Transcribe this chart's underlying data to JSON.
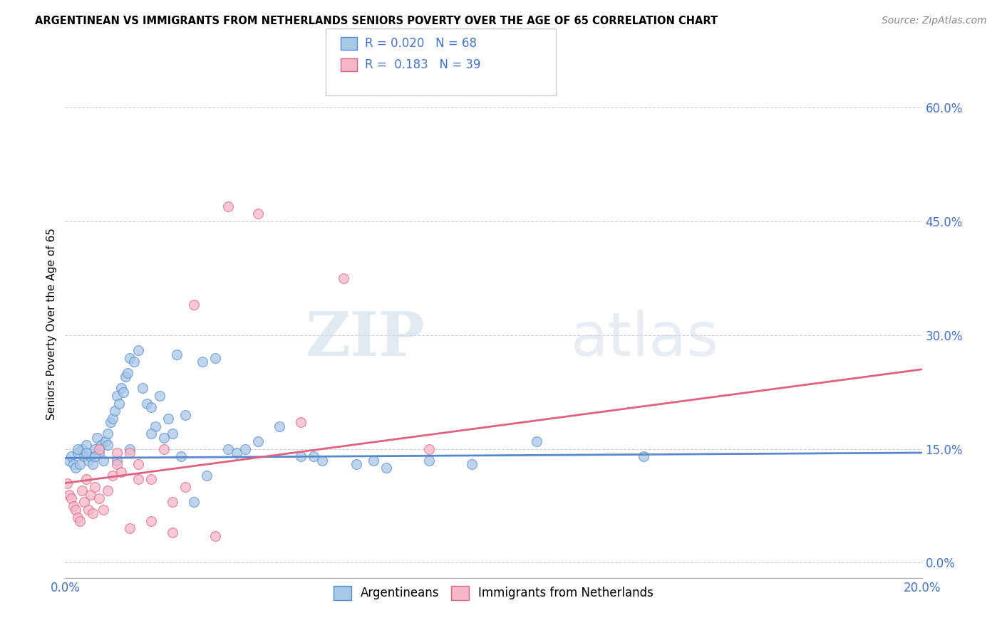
{
  "title": "ARGENTINEAN VS IMMIGRANTS FROM NETHERLANDS SENIORS POVERTY OVER THE AGE OF 65 CORRELATION CHART",
  "source": "Source: ZipAtlas.com",
  "ylabel": "Seniors Poverty Over the Age of 65",
  "ytick_vals": [
    0.0,
    15.0,
    30.0,
    45.0,
    60.0
  ],
  "xlim": [
    0.0,
    20.0
  ],
  "ylim": [
    -2.0,
    65.0
  ],
  "R_arg": 0.02,
  "N_arg": 68,
  "R_neth": 0.183,
  "N_neth": 39,
  "color_arg": "#a8c8e8",
  "color_neth": "#f4b8c8",
  "color_arg_line": "#5588cc",
  "color_neth_line": "#e06080",
  "legend_label_arg": "Argentineans",
  "legend_label_neth": "Immigrants from Netherlands",
  "watermark_zip": "ZIP",
  "watermark_atlas": "atlas",
  "arg_x": [
    0.1,
    0.15,
    0.2,
    0.25,
    0.3,
    0.35,
    0.4,
    0.45,
    0.5,
    0.55,
    0.6,
    0.65,
    0.7,
    0.75,
    0.8,
    0.85,
    0.9,
    0.95,
    1.0,
    1.05,
    1.1,
    1.15,
    1.2,
    1.25,
    1.3,
    1.35,
    1.4,
    1.45,
    1.5,
    1.6,
    1.7,
    1.8,
    1.9,
    2.0,
    2.1,
    2.2,
    2.4,
    2.5,
    2.6,
    2.8,
    3.0,
    3.2,
    3.5,
    3.8,
    4.0,
    4.5,
    5.0,
    5.5,
    6.0,
    6.8,
    7.5,
    8.5,
    9.5,
    11.0,
    13.5,
    0.3,
    0.5,
    0.7,
    1.0,
    1.2,
    1.5,
    2.0,
    2.3,
    2.7,
    3.3,
    4.2,
    5.8,
    7.2
  ],
  "arg_y": [
    13.5,
    14.0,
    13.0,
    12.5,
    14.5,
    13.0,
    15.0,
    14.0,
    15.5,
    13.5,
    14.0,
    13.0,
    15.0,
    16.5,
    14.5,
    15.5,
    13.5,
    16.0,
    17.0,
    18.5,
    19.0,
    20.0,
    22.0,
    21.0,
    23.0,
    22.5,
    24.5,
    25.0,
    27.0,
    26.5,
    28.0,
    23.0,
    21.0,
    20.5,
    18.0,
    22.0,
    19.0,
    17.0,
    27.5,
    19.5,
    8.0,
    26.5,
    27.0,
    15.0,
    14.5,
    16.0,
    18.0,
    14.0,
    13.5,
    13.0,
    12.5,
    13.5,
    13.0,
    16.0,
    14.0,
    15.0,
    14.5,
    14.0,
    15.5,
    13.5,
    15.0,
    17.0,
    16.5,
    14.0,
    11.5,
    15.0,
    14.0,
    13.5
  ],
  "neth_x": [
    0.05,
    0.1,
    0.15,
    0.2,
    0.25,
    0.3,
    0.35,
    0.4,
    0.45,
    0.5,
    0.55,
    0.6,
    0.65,
    0.7,
    0.8,
    0.9,
    1.0,
    1.1,
    1.2,
    1.3,
    1.5,
    1.7,
    2.0,
    2.3,
    2.5,
    3.0,
    3.8,
    4.5,
    5.5,
    6.5,
    8.5,
    1.5,
    2.0,
    2.5,
    3.5,
    0.8,
    1.2,
    1.7,
    2.8
  ],
  "neth_y": [
    10.5,
    9.0,
    8.5,
    7.5,
    7.0,
    6.0,
    5.5,
    9.5,
    8.0,
    11.0,
    7.0,
    9.0,
    6.5,
    10.0,
    8.5,
    7.0,
    9.5,
    11.5,
    13.0,
    12.0,
    14.5,
    13.0,
    11.0,
    15.0,
    8.0,
    34.0,
    47.0,
    46.0,
    18.5,
    37.5,
    15.0,
    4.5,
    5.5,
    4.0,
    3.5,
    15.0,
    14.5,
    11.0,
    10.0
  ]
}
